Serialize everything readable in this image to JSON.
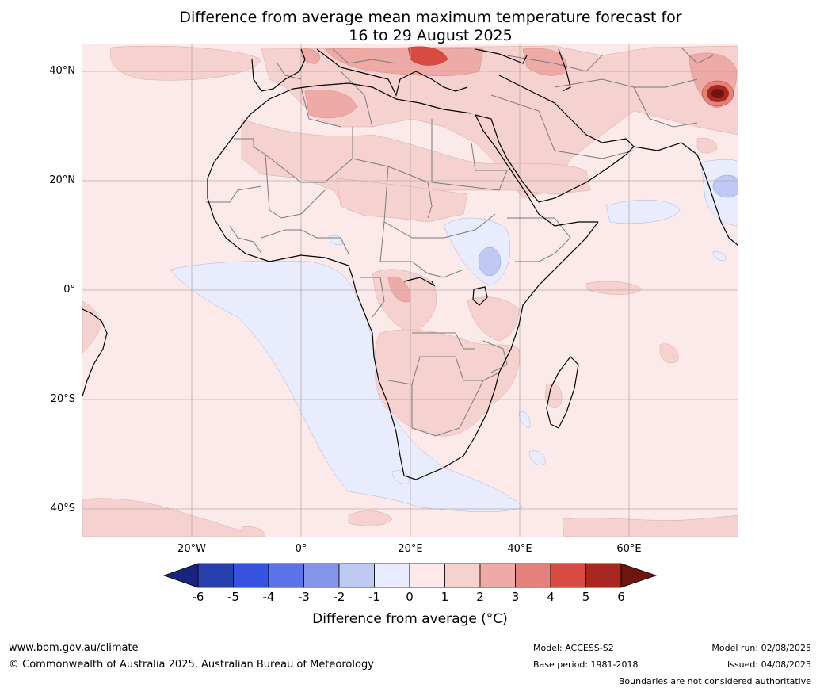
{
  "title_line1": "Difference from average mean maximum temperature forecast for",
  "title_line2": "16 to 29 August 2025",
  "lat_labels": [
    "40°N",
    "20°N",
    "0°",
    "20°S",
    "40°S"
  ],
  "lon_labels": [
    "20°W",
    "0°",
    "20°E",
    "40°E",
    "60°E"
  ],
  "colorbar": {
    "ticks": [
      "-6",
      "-5",
      "-4",
      "-3",
      "-2",
      "-1",
      "0",
      "1",
      "2",
      "3",
      "4",
      "5",
      "6"
    ],
    "colors": [
      "#1a237e",
      "#283fae",
      "#3552e0",
      "#5b73e6",
      "#8595ec",
      "#c0c8f4",
      "#e8ecfc",
      "#fbeae9",
      "#f5d2d0",
      "#eeaaa6",
      "#e4817b",
      "#d94b42",
      "#a8271f",
      "#6e1510"
    ],
    "label": "Difference from average (°C)"
  },
  "footer": {
    "website": "www.bom.gov.au/climate",
    "copyright": "© Commonwealth of Australia 2025, Australian Bureau of Meteorology",
    "model": "Model: ACCESS-S2",
    "base_period": "Base period: 1981-2018",
    "model_run": "Model run: 02/08/2025",
    "issued": "Issued: 04/08/2025",
    "disclaimer": "Boundaries are not considered authoritative"
  }
}
